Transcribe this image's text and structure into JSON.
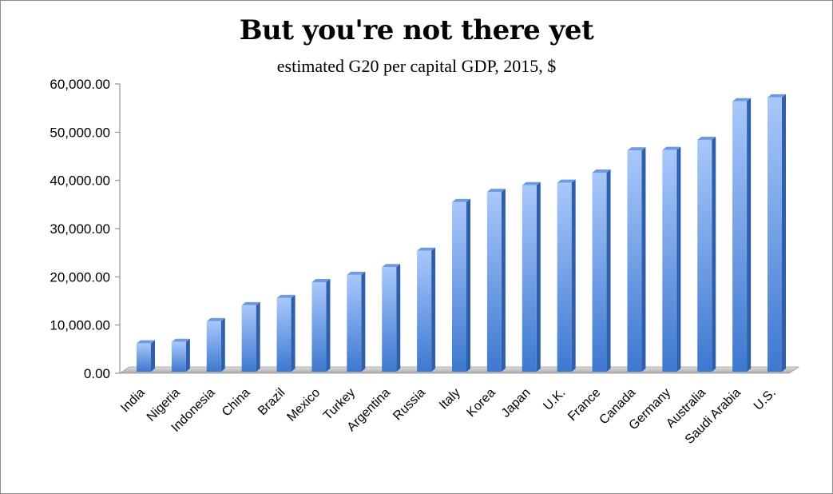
{
  "chart_data": {
    "type": "bar",
    "title": "But you're not there yet",
    "subtitle": "estimated G20 per capital GDP, 2015, $",
    "categories": [
      "India",
      "Nigeria",
      "Indonesia",
      "China",
      "Brazil",
      "Mexico",
      "Turkey",
      "Argentina",
      "Russia",
      "Italy",
      "Korea",
      "Japan",
      "U.K.",
      "France",
      "Canada",
      "Germany",
      "Australia",
      "Saudi Arabia",
      "U.S."
    ],
    "values": [
      6200,
      6500,
      10800,
      14100,
      15600,
      18900,
      20400,
      22000,
      25400,
      35500,
      37600,
      39000,
      39500,
      41600,
      46200,
      46300,
      48400,
      56400,
      57200
    ],
    "ylim": [
      0,
      60000
    ],
    "yticks": [
      "0.00",
      "10,000.00",
      "20,000.00",
      "30,000.00",
      "40,000.00",
      "50,000.00",
      "60,000.00"
    ],
    "grid": false,
    "colors": {
      "bar_top": "#a9c8fb",
      "bar_bottom": "#3d78d0",
      "bar_side": "#2f5fa8",
      "floor": "#bdbdbd"
    }
  }
}
